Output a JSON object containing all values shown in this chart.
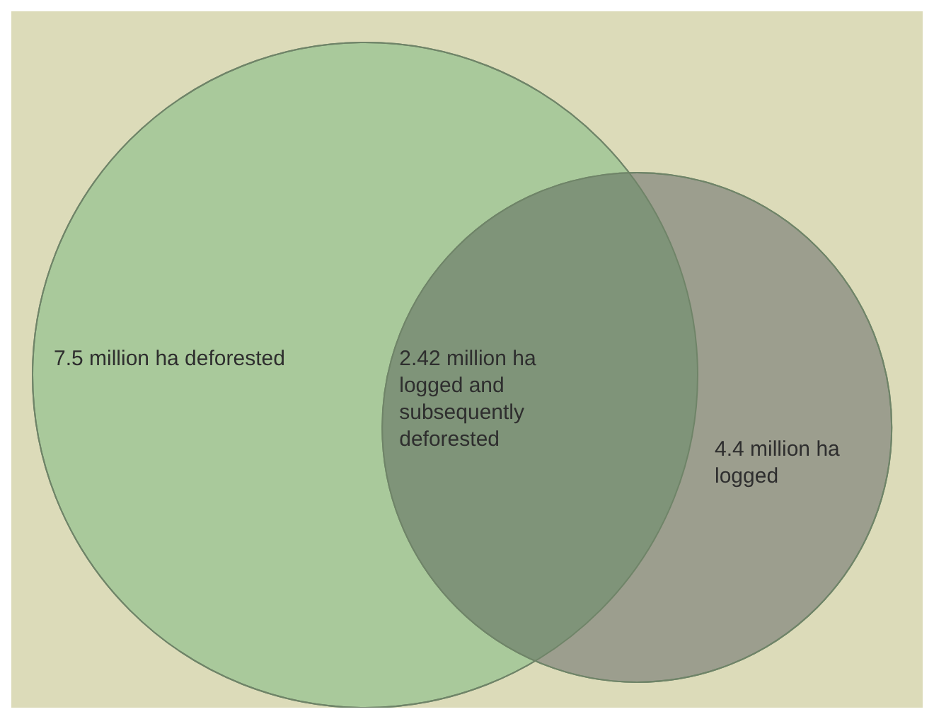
{
  "chart_data": {
    "type": "other",
    "values": [
      7.5,
      2.42,
      4.4
    ],
    "value_labels": [
      "7.5 million ha deforested",
      "2.42 million ha logged and subsequently deforested",
      "4.4 million ha logged"
    ],
    "colors": [
      "#a9c99b",
      "#7f9479",
      "#9c9e8e"
    ]
  }
}
